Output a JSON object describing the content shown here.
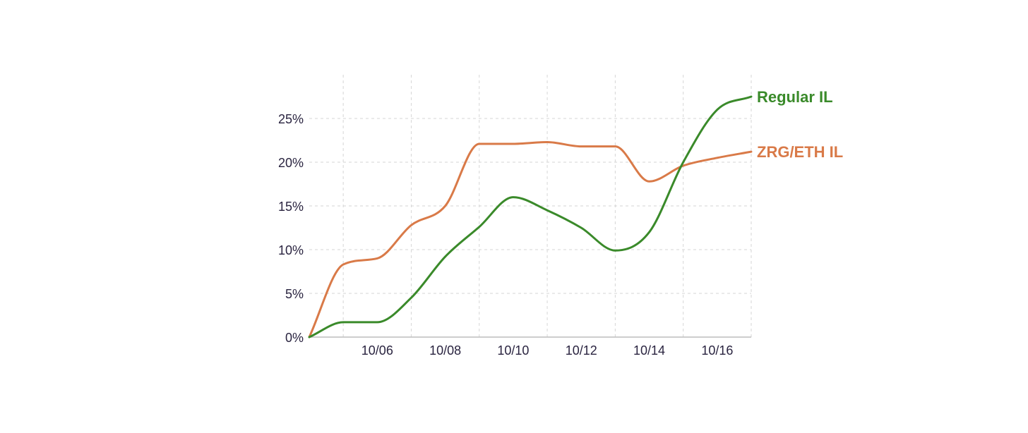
{
  "chart_data": {
    "type": "line",
    "x": [
      "10/04",
      "10/05",
      "10/06",
      "10/07",
      "10/08",
      "10/09",
      "10/10",
      "10/11",
      "10/12",
      "10/13",
      "10/14",
      "10/15",
      "10/16",
      "10/17"
    ],
    "x_tick_labels": [
      "10/06",
      "10/08",
      "10/10",
      "10/12",
      "10/14",
      "10/16"
    ],
    "y_tick_labels": [
      "0%",
      "5%",
      "10%",
      "15%",
      "20%",
      "25%"
    ],
    "y_ticks": [
      0,
      5,
      10,
      15,
      20,
      25
    ],
    "ylim": [
      0,
      30
    ],
    "grid": true,
    "legend_placement": "right-end-labels",
    "series": [
      {
        "name": "Regular IL",
        "color": "#3a8a2a",
        "values": [
          0,
          1.7,
          1.7,
          4.5,
          9.2,
          12.6,
          16.0,
          14.5,
          12.5,
          9.9,
          12.0,
          20.0,
          26.0,
          27.5
        ]
      },
      {
        "name": "ZRG/ETH IL",
        "color": "#d97a48",
        "values": [
          0,
          8.3,
          9.0,
          12.8,
          15.0,
          22.1,
          22.1,
          22.3,
          21.8,
          21.8,
          17.8,
          19.6,
          20.5,
          21.2
        ]
      }
    ]
  }
}
